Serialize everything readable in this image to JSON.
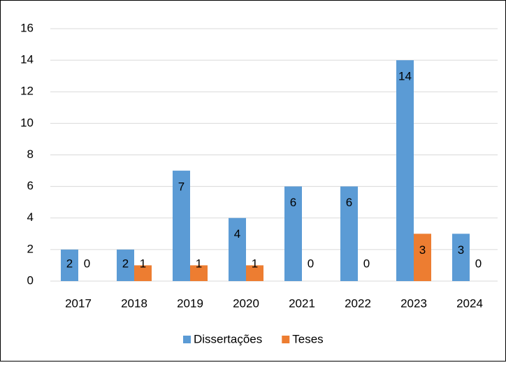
{
  "chart_data": {
    "type": "bar",
    "categories": [
      "2017",
      "2018",
      "2019",
      "2020",
      "2021",
      "2022",
      "2023",
      "2024"
    ],
    "series": [
      {
        "name": "Dissertações",
        "color": "#5b9bd5",
        "values": [
          2,
          2,
          7,
          4,
          6,
          6,
          14,
          3
        ]
      },
      {
        "name": "Teses",
        "color": "#ed7d31",
        "values": [
          0,
          1,
          1,
          1,
          0,
          0,
          3,
          0
        ]
      }
    ],
    "ylim": [
      0,
      16
    ],
    "yticks": [
      0,
      2,
      4,
      6,
      8,
      10,
      12,
      14,
      16
    ],
    "grid": true,
    "legend": "bottom",
    "data_labels": true
  }
}
